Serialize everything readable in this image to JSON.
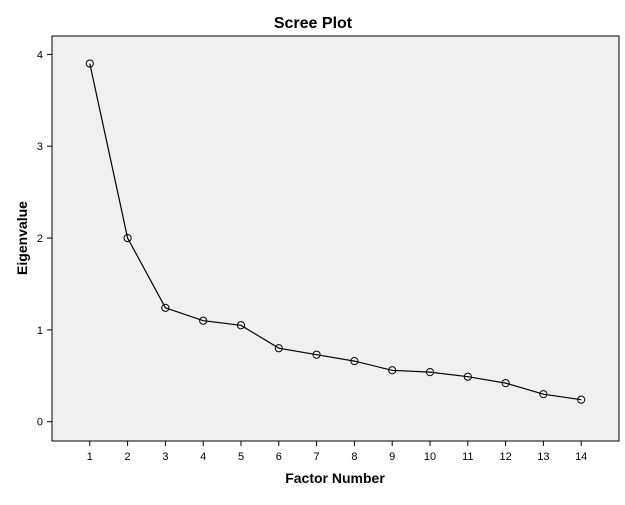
{
  "chart_data": {
    "type": "line",
    "title": "Scree Plot",
    "xlabel": "Factor Number",
    "ylabel": "Eigenvalue",
    "x": [
      1,
      2,
      3,
      4,
      5,
      6,
      7,
      8,
      9,
      10,
      11,
      12,
      13,
      14
    ],
    "x_tick_labels": [
      "1",
      "2",
      "3",
      "4",
      "5",
      "6",
      "7",
      "8",
      "9",
      "10",
      "11",
      "12",
      "13",
      "14"
    ],
    "y_tick_values": [
      0,
      1,
      2,
      3,
      4
    ],
    "y_tick_labels": [
      "0",
      "1",
      "2",
      "3",
      "4"
    ],
    "series": [
      {
        "values": [
          3.9,
          2.0,
          1.24,
          1.1,
          1.05,
          0.8,
          0.73,
          0.66,
          0.56,
          0.54,
          0.49,
          0.42,
          0.3,
          0.24
        ],
        "marker": "open-circle"
      }
    ],
    "xlim": [
      0,
      15
    ],
    "ylim": [
      -0.21,
      4.2
    ],
    "grid": false,
    "colors": {
      "plot_background": "#f0f0f0",
      "line": "#000000",
      "frame": "#000000"
    }
  }
}
